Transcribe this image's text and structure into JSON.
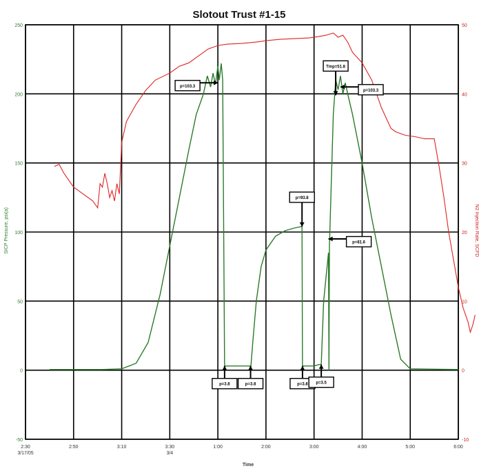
{
  "chart_data": {
    "type": "line",
    "title": "Slotout Trust #1-15",
    "xlabel": "Time",
    "ylabel_left": "SICP Pressure, psi(a)",
    "ylabel_right": "N2 Injection Rate, SCFD",
    "x_ticks": [
      "2:30",
      "2:50",
      "3:10",
      "3:30",
      "1:00",
      "2:00",
      "3:00",
      "4:00",
      "5:00",
      "6:00"
    ],
    "x_tick_sub": {
      "0": "3/17/05",
      "3": "3/4"
    },
    "y_left_ticks": [
      "250",
      "200",
      "150",
      "100",
      "50",
      "0",
      "-50"
    ],
    "y_right_ticks": [
      "50",
      "40",
      "30",
      "20",
      "10",
      "0",
      "-10"
    ],
    "y_left_range": [
      -50,
      250
    ],
    "y_right_range": [
      -10,
      50
    ],
    "legend": "none",
    "grid": true,
    "series": [
      {
        "name": "Pressure",
        "color": "#2a7a2a",
        "axis": "left",
        "points": [
          [
            0.5,
            0.5
          ],
          [
            1.6,
            0.5
          ],
          [
            2.0,
            1
          ],
          [
            2.3,
            5
          ],
          [
            2.55,
            20
          ],
          [
            2.8,
            55
          ],
          [
            3.0,
            90
          ],
          [
            3.2,
            125
          ],
          [
            3.4,
            160
          ],
          [
            3.55,
            185
          ],
          [
            3.7,
            200
          ],
          [
            3.78,
            213
          ],
          [
            3.85,
            205
          ],
          [
            3.9,
            215
          ],
          [
            3.95,
            207
          ],
          [
            4.0,
            220
          ],
          [
            4.03,
            210
          ],
          [
            4.07,
            222
          ],
          [
            4.1,
            210
          ],
          [
            4.14,
            0
          ],
          [
            4.15,
            3
          ],
          [
            4.5,
            3
          ],
          [
            4.67,
            3
          ],
          [
            4.68,
            0
          ],
          [
            4.72,
            18
          ],
          [
            4.8,
            50
          ],
          [
            4.9,
            75
          ],
          [
            5.0,
            87
          ],
          [
            5.2,
            97
          ],
          [
            5.4,
            101
          ],
          [
            5.6,
            103
          ],
          [
            5.75,
            104
          ],
          [
            5.76,
            0
          ],
          [
            5.77,
            3
          ],
          [
            6.0,
            3
          ],
          [
            6.1,
            4
          ],
          [
            6.15,
            4
          ],
          [
            6.2,
            50
          ],
          [
            6.3,
            85
          ],
          [
            6.31,
            0
          ],
          [
            6.32,
            90
          ],
          [
            6.4,
            185
          ],
          [
            6.45,
            210
          ],
          [
            6.5,
            203
          ],
          [
            6.55,
            213
          ],
          [
            6.6,
            200
          ],
          [
            6.65,
            208
          ],
          [
            6.7,
            200
          ],
          [
            6.8,
            185
          ],
          [
            7.0,
            150
          ],
          [
            7.2,
            110
          ],
          [
            7.4,
            75
          ],
          [
            7.6,
            40
          ],
          [
            7.8,
            8
          ],
          [
            8.0,
            1
          ],
          [
            9.0,
            0.5
          ]
        ]
      },
      {
        "name": "N2 Rate",
        "color": "#dd2222",
        "axis": "right",
        "points": [
          [
            0.6,
            29.5
          ],
          [
            0.7,
            29.8
          ],
          [
            0.8,
            28.5
          ],
          [
            0.9,
            27.5
          ],
          [
            1.0,
            26.5
          ],
          [
            1.1,
            26
          ],
          [
            1.2,
            25.5
          ],
          [
            1.4,
            24.5
          ],
          [
            1.5,
            23.5
          ],
          [
            1.55,
            27
          ],
          [
            1.6,
            26.5
          ],
          [
            1.65,
            28.5
          ],
          [
            1.7,
            27
          ],
          [
            1.75,
            25
          ],
          [
            1.8,
            26
          ],
          [
            1.85,
            24.5
          ],
          [
            1.9,
            27
          ],
          [
            1.95,
            25.5
          ],
          [
            2.0,
            33
          ],
          [
            2.1,
            36
          ],
          [
            2.3,
            38.5
          ],
          [
            2.5,
            40.5
          ],
          [
            2.7,
            42
          ],
          [
            3.0,
            43
          ],
          [
            3.2,
            44
          ],
          [
            3.4,
            44.5
          ],
          [
            3.6,
            45.5
          ],
          [
            3.8,
            46.5
          ],
          [
            4.0,
            47
          ],
          [
            4.2,
            47.2
          ],
          [
            4.5,
            47.3
          ],
          [
            4.8,
            47.5
          ],
          [
            5.0,
            47.7
          ],
          [
            5.3,
            47.9
          ],
          [
            5.6,
            48
          ],
          [
            5.9,
            48.1
          ],
          [
            6.1,
            48.3
          ],
          [
            6.25,
            48.5
          ],
          [
            6.4,
            48.8
          ],
          [
            6.5,
            48.2
          ],
          [
            6.6,
            48.5
          ],
          [
            6.7,
            47.5
          ],
          [
            6.8,
            46
          ],
          [
            7.0,
            44.5
          ],
          [
            7.2,
            42
          ],
          [
            7.4,
            38
          ],
          [
            7.6,
            35
          ],
          [
            7.7,
            34.5
          ],
          [
            7.9,
            34
          ],
          [
            8.1,
            33.8
          ],
          [
            8.3,
            33.5
          ],
          [
            8.5,
            33.5
          ],
          [
            8.6,
            29.5
          ],
          [
            8.7,
            25
          ],
          [
            8.8,
            20
          ],
          [
            8.9,
            16
          ],
          [
            9.0,
            12
          ],
          [
            9.1,
            9
          ],
          [
            9.2,
            7
          ],
          [
            9.25,
            5.5
          ],
          [
            9.3,
            6.5
          ],
          [
            9.35,
            8
          ]
        ]
      }
    ],
    "annotations": [
      {
        "text": "p=103.3",
        "box": "left",
        "anchor": [
          4.0,
          208
        ]
      },
      {
        "text": "p=93.8",
        "box": "top",
        "anchor": [
          5.75,
          104
        ]
      },
      {
        "text": "Tmp=51.8",
        "box": "top",
        "anchor": [
          6.45,
          199
        ]
      },
      {
        "text": "p=103.3",
        "box": "right",
        "anchor": [
          6.55,
          205
        ]
      },
      {
        "text": "p=81.6",
        "box": "right",
        "anchor": [
          6.3,
          95
        ]
      },
      {
        "text": "p=3.8",
        "box": "bottom",
        "anchor": [
          4.14,
          3
        ]
      },
      {
        "text": "p=3.8",
        "box": "bottom",
        "anchor": [
          4.68,
          3
        ]
      },
      {
        "text": "p=3.8",
        "box": "bottom",
        "anchor": [
          5.76,
          3
        ]
      },
      {
        "text": "p=3.5",
        "box": "bottom",
        "anchor": [
          6.15,
          4
        ]
      }
    ]
  }
}
